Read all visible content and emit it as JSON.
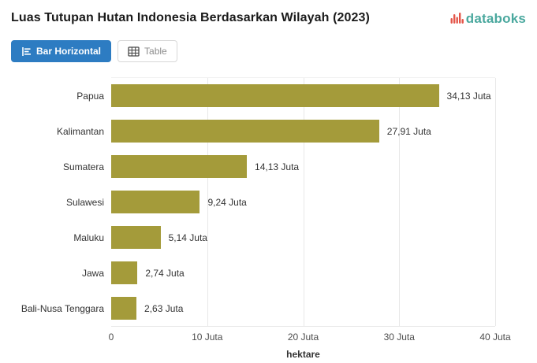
{
  "header": {
    "title": "Luas Tutupan Hutan Indonesia Berdasarkan Wilayah (2023)",
    "brand": {
      "name": "databoks",
      "text_color": "#4aa89e",
      "mark_color": "#e4564a"
    }
  },
  "toolbar": {
    "buttons": [
      {
        "label": "Bar Horizontal",
        "active": true
      },
      {
        "label": "Table",
        "active": false
      }
    ],
    "active_color": "#2d7cc2"
  },
  "chart_data": {
    "type": "bar",
    "orientation": "horizontal",
    "title": "Luas Tutupan Hutan Indonesia Berdasarkan Wilayah (2023)",
    "categories": [
      "Papua",
      "Kalimantan",
      "Sumatera",
      "Sulawesi",
      "Maluku",
      "Jawa",
      "Bali-Nusa Tenggara"
    ],
    "values": [
      34.13,
      27.91,
      14.13,
      9.24,
      5.14,
      2.74,
      2.63
    ],
    "value_labels": [
      "34,13 Juta",
      "27,91 Juta",
      "14,13 Juta",
      "9,24 Juta",
      "5,14 Juta",
      "2,74 Juta",
      "2,63 Juta"
    ],
    "unit": "Juta hektare",
    "xlabel": "hektare",
    "ylabel": "",
    "xlim": [
      0,
      40
    ],
    "x_ticks": [
      {
        "value": 0,
        "label": "0"
      },
      {
        "value": 10,
        "label": "10 Juta"
      },
      {
        "value": 20,
        "label": "20 Juta"
      },
      {
        "value": 30,
        "label": "30 Juta"
      },
      {
        "value": 40,
        "label": "40 Juta"
      }
    ],
    "grid": "vertical",
    "legend": "none",
    "bar_color": "#a49b3a"
  }
}
